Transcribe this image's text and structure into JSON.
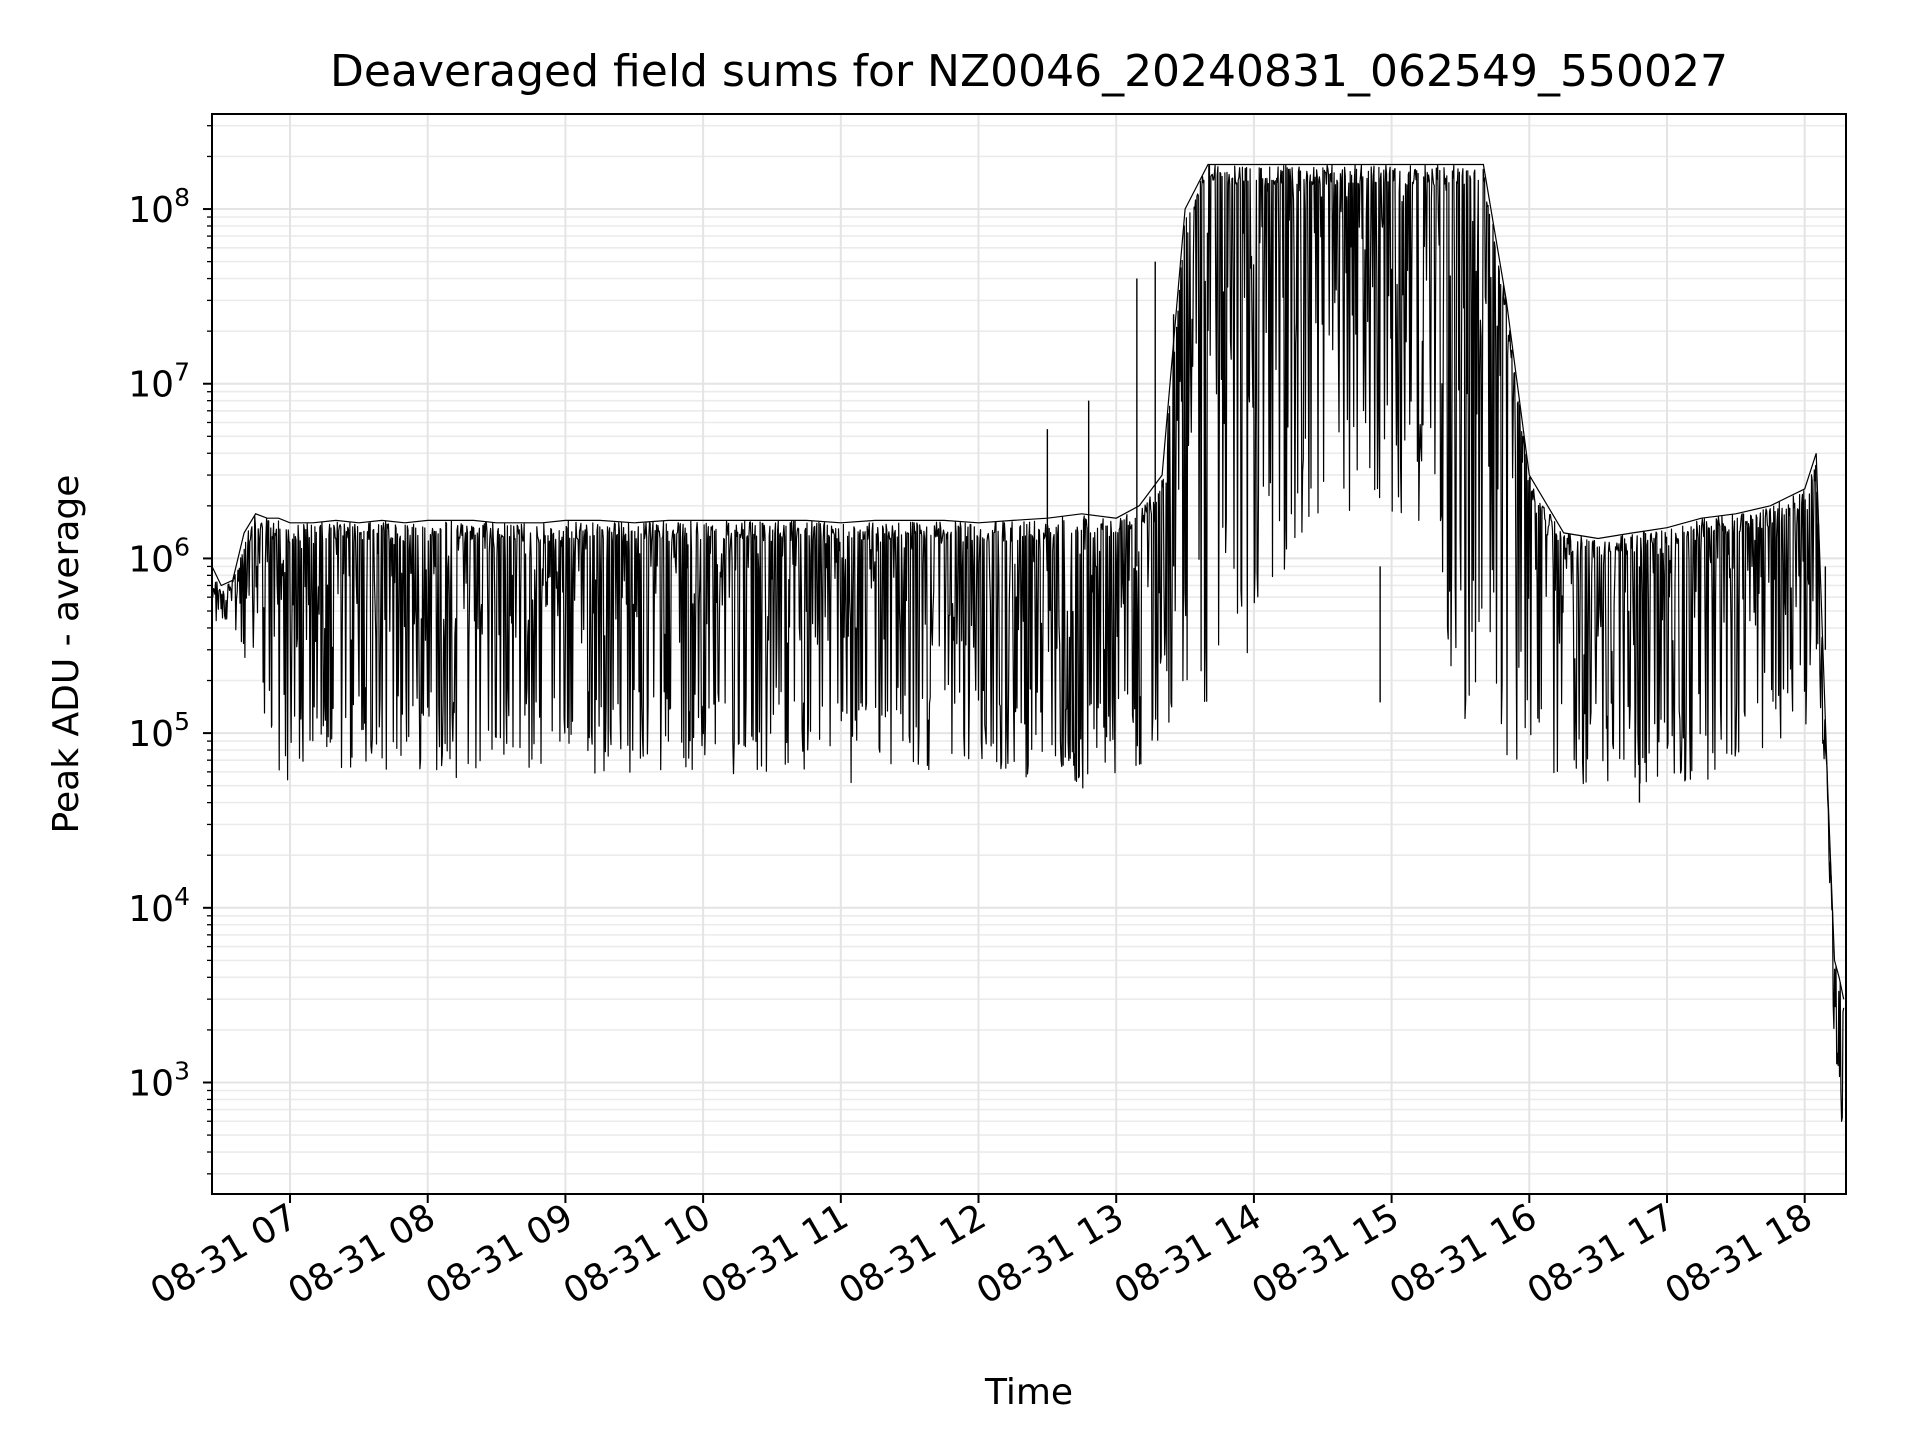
{
  "chart_data": {
    "type": "line",
    "title": "Deaveraged field sums for NZ0046_20240831_062549_550027",
    "xlabel": "Time",
    "ylabel": "Peak ADU - average",
    "yscale": "log",
    "grid": true,
    "ylim": [
      230,
      350000000
    ],
    "xlim": [
      "2024-08-31 06:26",
      "2024-08-31 18:18"
    ],
    "x_ticks": [
      {
        "value": "2024-08-31 07:00",
        "label": "08-31 07"
      },
      {
        "value": "2024-08-31 08:00",
        "label": "08-31 08"
      },
      {
        "value": "2024-08-31 09:00",
        "label": "08-31 09"
      },
      {
        "value": "2024-08-31 10:00",
        "label": "08-31 10"
      },
      {
        "value": "2024-08-31 11:00",
        "label": "08-31 11"
      },
      {
        "value": "2024-08-31 12:00",
        "label": "08-31 12"
      },
      {
        "value": "2024-08-31 13:00",
        "label": "08-31 13"
      },
      {
        "value": "2024-08-31 14:00",
        "label": "08-31 14"
      },
      {
        "value": "2024-08-31 15:00",
        "label": "08-31 15"
      },
      {
        "value": "2024-08-31 16:00",
        "label": "08-31 16"
      },
      {
        "value": "2024-08-31 17:00",
        "label": "08-31 17"
      },
      {
        "value": "2024-08-31 18:00",
        "label": "08-31 18"
      }
    ],
    "y_ticks": [
      {
        "value": 1000,
        "base": "10",
        "exp": "3"
      },
      {
        "value": 10000,
        "base": "10",
        "exp": "4"
      },
      {
        "value": 100000,
        "base": "10",
        "exp": "5"
      },
      {
        "value": 1000000,
        "base": "10",
        "exp": "6"
      },
      {
        "value": 10000000,
        "base": "10",
        "exp": "7"
      },
      {
        "value": 100000000,
        "base": "10",
        "exp": "8"
      }
    ],
    "series": [
      {
        "color": "#000000",
        "x": [
          "2024-08-31 06:26",
          "2024-08-31 06:30",
          "2024-08-31 06:35",
          "2024-08-31 06:40",
          "2024-08-31 06:45",
          "2024-08-31 06:50",
          "2024-08-31 06:55",
          "2024-08-31 07:00",
          "2024-08-31 07:10",
          "2024-08-31 07:20",
          "2024-08-31 07:30",
          "2024-08-31 07:40",
          "2024-08-31 07:50",
          "2024-08-31 08:00",
          "2024-08-31 08:10",
          "2024-08-31 08:20",
          "2024-08-31 08:30",
          "2024-08-31 08:40",
          "2024-08-31 08:50",
          "2024-08-31 09:00",
          "2024-08-31 09:15",
          "2024-08-31 09:30",
          "2024-08-31 09:45",
          "2024-08-31 10:00",
          "2024-08-31 10:15",
          "2024-08-31 10:30",
          "2024-08-31 10:45",
          "2024-08-31 11:00",
          "2024-08-31 11:15",
          "2024-08-31 11:30",
          "2024-08-31 11:45",
          "2024-08-31 12:00",
          "2024-08-31 12:15",
          "2024-08-31 12:30",
          "2024-08-31 12:45",
          "2024-08-31 13:00",
          "2024-08-31 13:10",
          "2024-08-31 13:20",
          "2024-08-31 13:30",
          "2024-08-31 13:40",
          "2024-08-31 13:50",
          "2024-08-31 14:00",
          "2024-08-31 14:15",
          "2024-08-31 14:30",
          "2024-08-31 14:45",
          "2024-08-31 15:00",
          "2024-08-31 15:15",
          "2024-08-31 15:30",
          "2024-08-31 15:40",
          "2024-08-31 15:50",
          "2024-08-31 16:00",
          "2024-08-31 16:15",
          "2024-08-31 16:30",
          "2024-08-31 16:45",
          "2024-08-31 17:00",
          "2024-08-31 17:15",
          "2024-08-31 17:30",
          "2024-08-31 17:45",
          "2024-08-31 18:00",
          "2024-08-31 18:05",
          "2024-08-31 18:10",
          "2024-08-31 18:13",
          "2024-08-31 18:15",
          "2024-08-31 18:17"
        ],
        "upper": [
          900000,
          700000,
          750000,
          1400000,
          1800000,
          1700000,
          1700000,
          1600000,
          1600000,
          1650000,
          1600000,
          1650000,
          1600000,
          1650000,
          1650000,
          1650000,
          1600000,
          1600000,
          1600000,
          1650000,
          1650000,
          1600000,
          1650000,
          1650000,
          1650000,
          1650000,
          1650000,
          1600000,
          1650000,
          1650000,
          1650000,
          1600000,
          1650000,
          1700000,
          1800000,
          1700000,
          2000000,
          3000000,
          100000000,
          180000000,
          180000000,
          180000000,
          180000000,
          180000000,
          180000000,
          180000000,
          180000000,
          180000000,
          180000000,
          30000000,
          3000000,
          1400000,
          1300000,
          1400000,
          1500000,
          1700000,
          1800000,
          2000000,
          2500000,
          4000000,
          50000,
          5000,
          4000,
          3000
        ],
        "lower": [
          400000,
          450000,
          400000,
          200000,
          110000,
          90000,
          60000,
          50000,
          55000,
          55000,
          60000,
          60000,
          65000,
          60000,
          55000,
          55000,
          60000,
          60000,
          60000,
          60000,
          55000,
          60000,
          58000,
          60000,
          58000,
          60000,
          55000,
          45000,
          60000,
          60000,
          60000,
          60000,
          60000,
          50000,
          45000,
          50000,
          60000,
          100000,
          150000,
          150000,
          200000,
          250000,
          900000,
          1000000,
          1500000,
          1500000,
          1500000,
          100000,
          90000,
          70000,
          60000,
          50000,
          50000,
          50000,
          50000,
          50000,
          60000,
          80000,
          100000,
          300000,
          30000,
          1500,
          900,
          400
        ]
      }
    ],
    "spikes": [
      {
        "x": "2024-08-31 06:52",
        "y": 110000
      },
      {
        "x": "2024-08-31 12:30",
        "y": 5500000
      },
      {
        "x": "2024-08-31 12:48",
        "y": 8000000
      },
      {
        "x": "2024-08-31 13:09",
        "y": 40000000
      },
      {
        "x": "2024-08-31 13:17",
        "y": 50000000
      },
      {
        "x": "2024-08-31 13:25",
        "y": 25000000
      },
      {
        "x": "2024-08-31 14:55",
        "y": 150000
      },
      {
        "x": "2024-08-31 16:48",
        "y": 40000
      },
      {
        "x": "2024-08-31 18:09",
        "y": 300000
      }
    ]
  }
}
